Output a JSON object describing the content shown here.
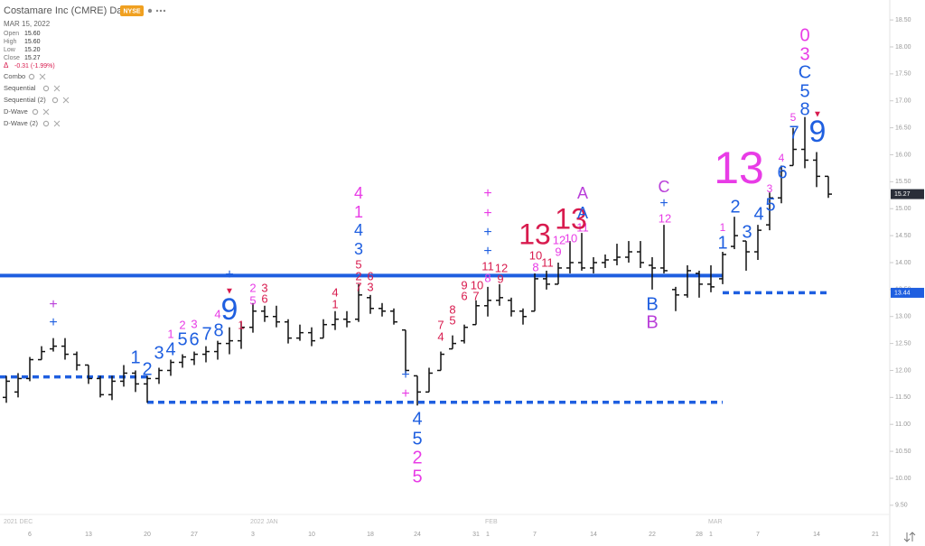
{
  "header": {
    "title": "Costamare Inc (CMRE) Daily",
    "exchange": "NYSE",
    "date": "MAR 15, 2022",
    "fields": [
      {
        "label": "Open",
        "value": "15.60"
      },
      {
        "label": "High",
        "value": "15.60"
      },
      {
        "label": "Low",
        "value": "15.20"
      },
      {
        "label": "Close",
        "value": "15.27"
      }
    ],
    "change_label": "Δ",
    "change": "-0.31 (-1.99%)",
    "indicators": [
      "Combo",
      "Sequential",
      "Sequential (2)",
      "D-Wave",
      "D-Wave (2)"
    ]
  },
  "chart_data": {
    "type": "ohlc",
    "color": "#111111",
    "categories": [
      null,
      null,
      "6",
      null,
      null,
      null,
      null,
      "13",
      null,
      null,
      null,
      null,
      "20",
      null,
      null,
      null,
      "27",
      null,
      null,
      null,
      null,
      "3",
      null,
      null,
      null,
      null,
      "10",
      null,
      null,
      null,
      null,
      "18",
      null,
      null,
      null,
      "24",
      null,
      null,
      null,
      null,
      "31",
      "1",
      null,
      null,
      null,
      "7",
      null,
      null,
      null,
      null,
      "14",
      null,
      null,
      null,
      null,
      "22",
      null,
      null,
      null,
      "28",
      "1",
      null,
      null,
      null,
      "7",
      null,
      null,
      null,
      null,
      "14",
      null,
      null,
      null,
      null,
      "21"
    ],
    "month_categories": [
      "2021 DEC",
      null,
      null,
      null,
      null,
      null,
      null,
      null,
      null,
      null,
      null,
      null,
      null,
      null,
      null,
      null,
      null,
      null,
      null,
      null,
      null,
      "2022 JAN",
      null,
      null,
      null,
      null,
      null,
      null,
      null,
      null,
      null,
      null,
      null,
      null,
      null,
      null,
      null,
      null,
      null,
      null,
      null,
      "FEB",
      null,
      null,
      null,
      null,
      null,
      null,
      null,
      null,
      null,
      null,
      null,
      null,
      null,
      null,
      null,
      null,
      null,
      null,
      "MAR",
      null,
      null,
      null,
      null,
      null,
      null,
      null,
      null,
      null,
      null,
      null,
      null,
      null,
      null
    ],
    "open": [
      11.5,
      11.6,
      11.85,
      12.2,
      12.4,
      12.45,
      12.3,
      12.1,
      11.85,
      11.55,
      11.8,
      11.95,
      11.75,
      11.85,
      12.0,
      12.15,
      12.2,
      12.3,
      12.35,
      12.5,
      12.55,
      12.8,
      13.1,
      13.0,
      12.9,
      12.6,
      12.7,
      12.6,
      12.85,
      12.95,
      12.95,
      13.35,
      13.15,
      13.1,
      12.75,
      11.9,
      11.6,
      12.0,
      12.4,
      12.55,
      12.85,
      13.2,
      13.3,
      13.3,
      13.1,
      13.1,
      13.7,
      13.6,
      13.9,
      14.0,
      13.9,
      14.0,
      14.05,
      14.1,
      14.2,
      13.95,
      13.9,
      13.5,
      13.4,
      13.8,
      13.6,
      13.7,
      14.3,
      14.4,
      14.2,
      14.7,
      15.2,
      15.8,
      16.1,
      15.9,
      15.6,
      null,
      null,
      null,
      null
    ],
    "high": [
      11.9,
      11.95,
      12.25,
      12.45,
      12.6,
      12.6,
      12.35,
      12.1,
      11.9,
      11.9,
      12.1,
      12.0,
      11.9,
      12.05,
      12.2,
      12.3,
      12.35,
      12.45,
      12.55,
      12.8,
      12.9,
      13.25,
      13.2,
      13.2,
      12.95,
      12.85,
      12.8,
      12.95,
      13.1,
      13.1,
      13.6,
      13.4,
      13.25,
      13.15,
      12.75,
      11.9,
      12.05,
      12.35,
      12.65,
      12.85,
      13.3,
      13.55,
      13.6,
      13.35,
      13.15,
      13.8,
      13.85,
      14.0,
      14.4,
      14.55,
      14.1,
      14.15,
      14.35,
      14.4,
      14.4,
      14.1,
      14.7,
      13.55,
      13.95,
      13.85,
      13.95,
      14.2,
      14.85,
      14.4,
      14.7,
      15.3,
      15.8,
      16.5,
      16.7,
      16.05,
      15.6,
      null,
      null,
      null,
      null
    ],
    "low": [
      11.4,
      11.5,
      11.8,
      12.2,
      12.35,
      12.2,
      12.0,
      11.75,
      11.5,
      11.45,
      11.7,
      11.6,
      11.4,
      11.75,
      11.9,
      12.05,
      12.1,
      12.15,
      12.2,
      12.3,
      12.4,
      12.7,
      12.9,
      12.8,
      12.5,
      12.55,
      12.45,
      12.6,
      12.75,
      12.8,
      12.9,
      13.05,
      13.0,
      12.85,
      11.95,
      11.35,
      11.6,
      12.0,
      12.4,
      12.5,
      12.85,
      13.0,
      13.2,
      13.0,
      12.85,
      13.1,
      13.5,
      13.6,
      13.8,
      13.85,
      13.8,
      13.9,
      13.95,
      14.0,
      13.9,
      13.5,
      13.8,
      13.1,
      13.35,
      13.35,
      13.45,
      13.6,
      14.25,
      13.85,
      14.05,
      14.6,
      15.1,
      15.8,
      15.75,
      15.4,
      15.2,
      null,
      null,
      null,
      null
    ],
    "close": [
      11.8,
      11.85,
      12.2,
      12.35,
      12.45,
      12.3,
      12.1,
      11.85,
      11.55,
      11.8,
      11.95,
      11.75,
      11.85,
      12.0,
      12.15,
      12.25,
      12.3,
      12.35,
      12.5,
      12.55,
      12.8,
      13.1,
      13.0,
      12.9,
      12.6,
      12.7,
      12.55,
      12.85,
      12.95,
      12.9,
      13.4,
      13.15,
      13.1,
      12.9,
      12.0,
      11.6,
      11.95,
      12.3,
      12.5,
      12.8,
      13.2,
      13.3,
      13.35,
      13.1,
      13.0,
      13.7,
      13.6,
      13.9,
      14.0,
      13.9,
      14.0,
      14.05,
      14.1,
      14.2,
      14.0,
      13.9,
      13.85,
      13.4,
      13.85,
      13.6,
      13.55,
      14.15,
      14.5,
      14.2,
      14.6,
      15.2,
      15.7,
      16.1,
      15.9,
      15.6,
      15.27,
      null,
      null,
      null,
      null
    ],
    "ylim": [
      9.33,
      18.87
    ],
    "yticks": [
      {
        "value": 9.5,
        "label": "9.50"
      },
      {
        "value": 10,
        "label": "10.00"
      },
      {
        "value": 10.5,
        "label": "10.50"
      },
      {
        "value": 11,
        "label": "11.00"
      },
      {
        "value": 11.5,
        "label": "11.50"
      },
      {
        "value": 12,
        "label": "12.00"
      },
      {
        "value": 12.5,
        "label": "12.50"
      },
      {
        "value": 13,
        "label": "13.00"
      },
      {
        "value": 13.5,
        "label": "13.50"
      },
      {
        "value": 14,
        "label": "14.00"
      },
      {
        "value": 14.5,
        "label": "14.50"
      },
      {
        "value": 15,
        "label": "15.00"
      },
      {
        "value": 15.5,
        "label": "15.50"
      },
      {
        "value": 16,
        "label": "16.00"
      },
      {
        "value": 16.5,
        "label": "16.50"
      },
      {
        "value": 17,
        "label": "17.00"
      },
      {
        "value": 17.5,
        "label": "17.50"
      },
      {
        "value": 18,
        "label": "18.00"
      },
      {
        "value": 18.5,
        "label": "18.50"
      }
    ],
    "grid": false,
    "price_markers": [
      {
        "value": 15.27,
        "label": "15.27",
        "color": "#2a2e39"
      },
      {
        "value": 13.44,
        "label": "13.44",
        "color": "#1f5fe0"
      }
    ],
    "levels": [
      {
        "value": 13.76,
        "dashed": false,
        "color": "#1f5fe0"
      },
      {
        "value": 11.88,
        "dashed": true,
        "color": "#1f5fe0"
      },
      {
        "value": 11.41,
        "dashed": true,
        "color": "#1f5fe0"
      },
      {
        "value": 13.44,
        "dashed": true,
        "color": "#1f5fe0"
      }
    ],
    "annotations": [
      {
        "text": "+",
        "color": "#b93fd9"
      },
      {
        "text": "+",
        "color": "#1f5fe0"
      },
      {
        "text": "1",
        "color": "#1f5fe0"
      },
      {
        "text": "2",
        "color": "#1f5fe0"
      },
      {
        "text": "3",
        "color": "#1f5fe0"
      },
      {
        "text": "4",
        "color": "#1f5fe0"
      },
      {
        "text": "5",
        "color": "#1f5fe0"
      },
      {
        "text": "6",
        "color": "#1f5fe0"
      },
      {
        "text": "7",
        "color": "#1f5fe0"
      },
      {
        "text": "8",
        "color": "#1f5fe0"
      },
      {
        "text": "1",
        "color": "#e83ce6"
      },
      {
        "text": "2",
        "color": "#e83ce6"
      },
      {
        "text": "3",
        "color": "#e83ce6"
      },
      {
        "text": "4",
        "color": "#e83ce6"
      },
      {
        "text": "▼",
        "color": "#d81b4e"
      },
      {
        "text": "9",
        "color": "#1f5fe0"
      },
      {
        "text": "1",
        "color": "#d81b4e"
      },
      {
        "text": "2",
        "color": "#e83ce6"
      },
      {
        "text": "5",
        "color": "#e83ce6"
      },
      {
        "text": "3",
        "color": "#d81b4e"
      },
      {
        "text": "6",
        "color": "#d81b4e"
      },
      {
        "text": "+",
        "color": "#1f5fe0"
      },
      {
        "text": "4",
        "color": "#d81b4e"
      },
      {
        "text": "1",
        "color": "#d81b4e"
      },
      {
        "text": "4",
        "color": "#e83ce6"
      },
      {
        "text": "1",
        "color": "#e83ce6"
      },
      {
        "text": "4",
        "color": "#1f5fe0"
      },
      {
        "text": "3",
        "color": "#1f5fe0"
      },
      {
        "text": "5",
        "color": "#d81b4e"
      },
      {
        "text": "2",
        "color": "#d81b4e"
      },
      {
        "text": "6",
        "color": "#d81b4e"
      },
      {
        "text": "7",
        "color": "#d81b4e"
      },
      {
        "text": "3",
        "color": "#d81b4e"
      },
      {
        "text": "+",
        "color": "#1f5fe0"
      },
      {
        "text": "+",
        "color": "#e83ce6"
      },
      {
        "text": "4",
        "color": "#1f5fe0"
      },
      {
        "text": "5",
        "color": "#1f5fe0"
      },
      {
        "text": "2",
        "color": "#e83ce6"
      },
      {
        "text": "5",
        "color": "#e83ce6"
      },
      {
        "text": "7",
        "color": "#d81b4e"
      },
      {
        "text": "4",
        "color": "#d81b4e"
      },
      {
        "text": "8",
        "color": "#d81b4e"
      },
      {
        "text": "5",
        "color": "#d81b4e"
      },
      {
        "text": "9",
        "color": "#d81b4e"
      },
      {
        "text": "6",
        "color": "#d81b4e"
      },
      {
        "text": "10",
        "color": "#d81b4e"
      },
      {
        "text": "7",
        "color": "#d81b4e"
      },
      {
        "text": "+",
        "color": "#e83ce6"
      },
      {
        "text": "+",
        "color": "#e83ce6"
      },
      {
        "text": "+",
        "color": "#1f5fe0"
      },
      {
        "text": "+",
        "color": "#1f5fe0"
      },
      {
        "text": "11",
        "color": "#d81b4e"
      },
      {
        "text": "12",
        "color": "#d81b4e"
      },
      {
        "text": "8",
        "color": "#e83ce6"
      },
      {
        "text": "9",
        "color": "#d81b4e"
      },
      {
        "text": "10",
        "color": "#d81b4e"
      },
      {
        "text": "8",
        "color": "#e83ce6"
      },
      {
        "text": "11",
        "color": "#d81b4e"
      },
      {
        "text": "9",
        "color": "#e83ce6"
      },
      {
        "text": "12",
        "color": "#e83ce6"
      },
      {
        "text": "10",
        "color": "#e83ce6"
      },
      {
        "text": "11",
        "color": "#e83ce6"
      },
      {
        "text": "13",
        "color": "#d81b4e"
      },
      {
        "text": "13",
        "color": "#d81b4e"
      },
      {
        "text": "A",
        "color": "#b93fd9"
      },
      {
        "text": "A",
        "color": "#1f5fe0"
      },
      {
        "text": "C",
        "color": "#b93fd9"
      },
      {
        "text": "+",
        "color": "#1f5fe0"
      },
      {
        "text": "12",
        "color": "#e83ce6"
      },
      {
        "text": "B",
        "color": "#1f5fe0"
      },
      {
        "text": "B",
        "color": "#b93fd9"
      },
      {
        "text": "13",
        "color": "#e83ce6"
      },
      {
        "text": "1",
        "color": "#e83ce6"
      },
      {
        "text": "1",
        "color": "#1f5fe0"
      },
      {
        "text": "2",
        "color": "#1f5fe0"
      },
      {
        "text": "3",
        "color": "#1f5fe0"
      },
      {
        "text": "4",
        "color": "#1f5fe0"
      },
      {
        "text": "5",
        "color": "#1f5fe0"
      },
      {
        "text": "3",
        "color": "#e83ce6"
      },
      {
        "text": "6",
        "color": "#1f5fe0"
      },
      {
        "text": "4",
        "color": "#e83ce6"
      },
      {
        "text": "7",
        "color": "#1f5fe0"
      },
      {
        "text": "5",
        "color": "#e83ce6"
      },
      {
        "text": "0",
        "color": "#e83ce6"
      },
      {
        "text": "3",
        "color": "#e83ce6"
      },
      {
        "text": "C",
        "color": "#1f5fe0"
      },
      {
        "text": "5",
        "color": "#1f5fe0"
      },
      {
        "text": "8",
        "color": "#1f5fe0"
      },
      {
        "text": "▼",
        "color": "#d81b4e"
      },
      {
        "text": "9",
        "color": "#1f5fe0"
      }
    ]
  }
}
